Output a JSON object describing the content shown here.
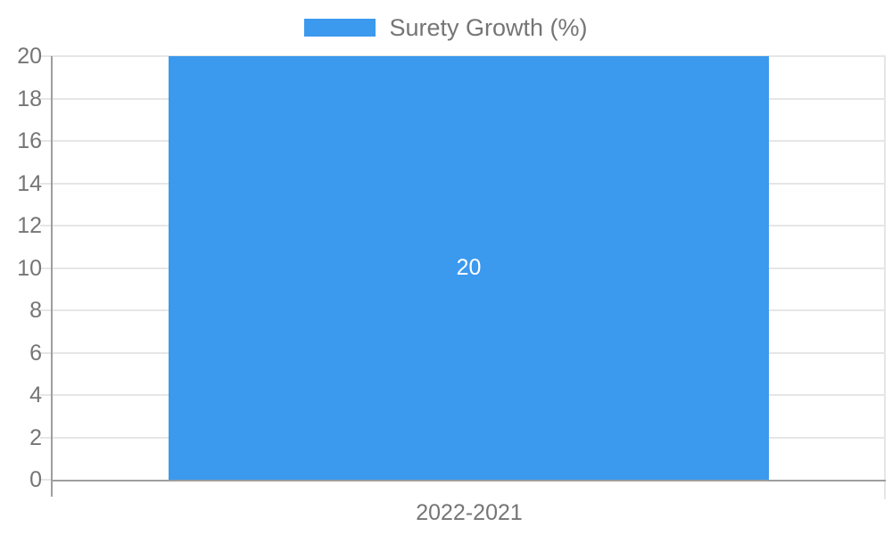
{
  "chart_data": {
    "type": "bar",
    "title": "",
    "categories": [
      "2022-2021"
    ],
    "series": [
      {
        "name": "Surety Growth (%)",
        "values": [
          20
        ]
      }
    ],
    "bar_value_label": "20",
    "ylim": [
      0,
      20
    ],
    "yticks": [
      0,
      2,
      4,
      6,
      8,
      10,
      12,
      14,
      16,
      18,
      20
    ],
    "grid": true,
    "legend_position": "top",
    "xlabel": "",
    "ylabel": ""
  },
  "legend": {
    "label": "Surety Growth (%)"
  },
  "colors": {
    "bar": "#3B99EE",
    "axis_text": "#757575",
    "axis_line": "#9E9E9E",
    "gridline": "#E6E6E6",
    "bar_label_text": "#FFFFFF",
    "background": "#FFFFFF"
  }
}
